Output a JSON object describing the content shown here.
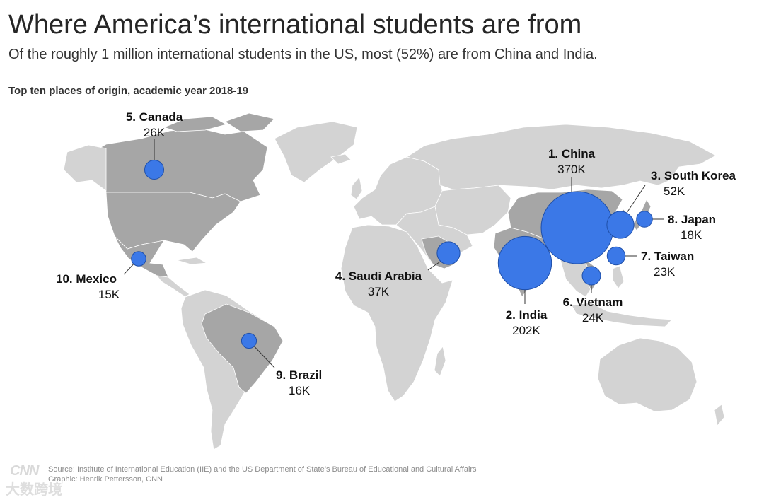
{
  "header": {
    "title": "Where America’s international students are from",
    "subtitle": "Of the roughly 1 million international students in the US, most (52%) are from China and India.",
    "chart_heading": "Top ten places of origin, academic year 2018-19"
  },
  "colors": {
    "land": "#d3d3d3",
    "land_highlight": "#a6a6a6",
    "bubble": "#3b78e7",
    "bubble_stroke": "#1f4fa8",
    "leader": "#333333"
  },
  "chart_data": {
    "type": "bubble-map",
    "title": "Top ten places of origin, academic year 2018-19",
    "unit": "students",
    "points": [
      {
        "rank": 1,
        "name": "1. China",
        "value_label": "370K",
        "value": 370000
      },
      {
        "rank": 2,
        "name": "2. India",
        "value_label": "202K",
        "value": 202000
      },
      {
        "rank": 3,
        "name": "3. South Korea",
        "value_label": "52K",
        "value": 52000
      },
      {
        "rank": 4,
        "name": "4. Saudi Arabia",
        "value_label": "37K",
        "value": 37000
      },
      {
        "rank": 5,
        "name": "5. Canada",
        "value_label": "26K",
        "value": 26000
      },
      {
        "rank": 6,
        "name": "6. Vietnam",
        "value_label": "24K",
        "value": 24000
      },
      {
        "rank": 7,
        "name": "7. Taiwan",
        "value_label": "23K",
        "value": 23000
      },
      {
        "rank": 8,
        "name": "8. Japan",
        "value_label": "18K",
        "value": 18000
      },
      {
        "rank": 9,
        "name": "9. Brazil",
        "value_label": "16K",
        "value": 16000
      },
      {
        "rank": 10,
        "name": "10. Mexico",
        "value_label": "15K",
        "value": 15000
      }
    ]
  },
  "footer": {
    "source": "Source: Institute of International Education (IIE) and the US Department of State’s Bureau of Educational and Cultural Affairs",
    "credit": "Graphic: Henrik Pettersson, CNN",
    "logo": "CNN",
    "watermark": "大数跨境"
  }
}
